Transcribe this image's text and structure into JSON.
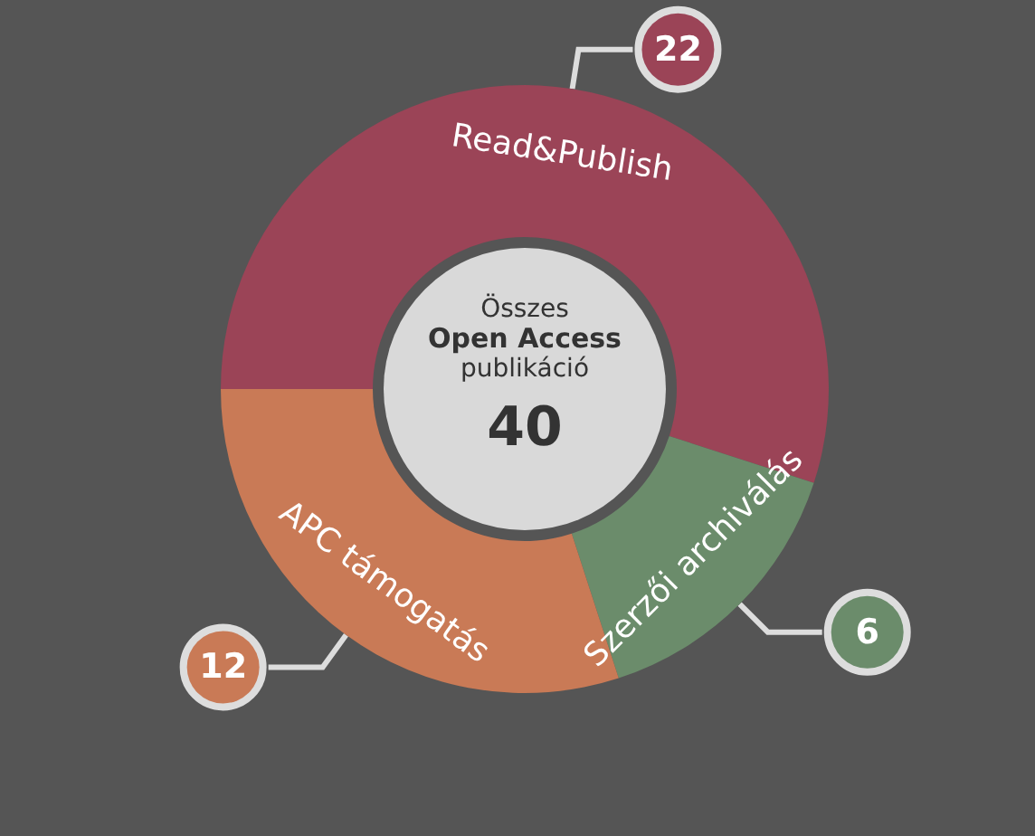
{
  "chart_data": {
    "type": "donut",
    "categories": [
      "Read&Publish",
      "Szerzői archiválás",
      "APC támogatás"
    ],
    "values": [
      22,
      6,
      12
    ],
    "colors": [
      "#9b4457",
      "#6b8c6b",
      "#c97a56"
    ],
    "data_labels": true,
    "annotations": [
      "Összes",
      "Open Access",
      "publikáció",
      "40"
    ]
  }
}
